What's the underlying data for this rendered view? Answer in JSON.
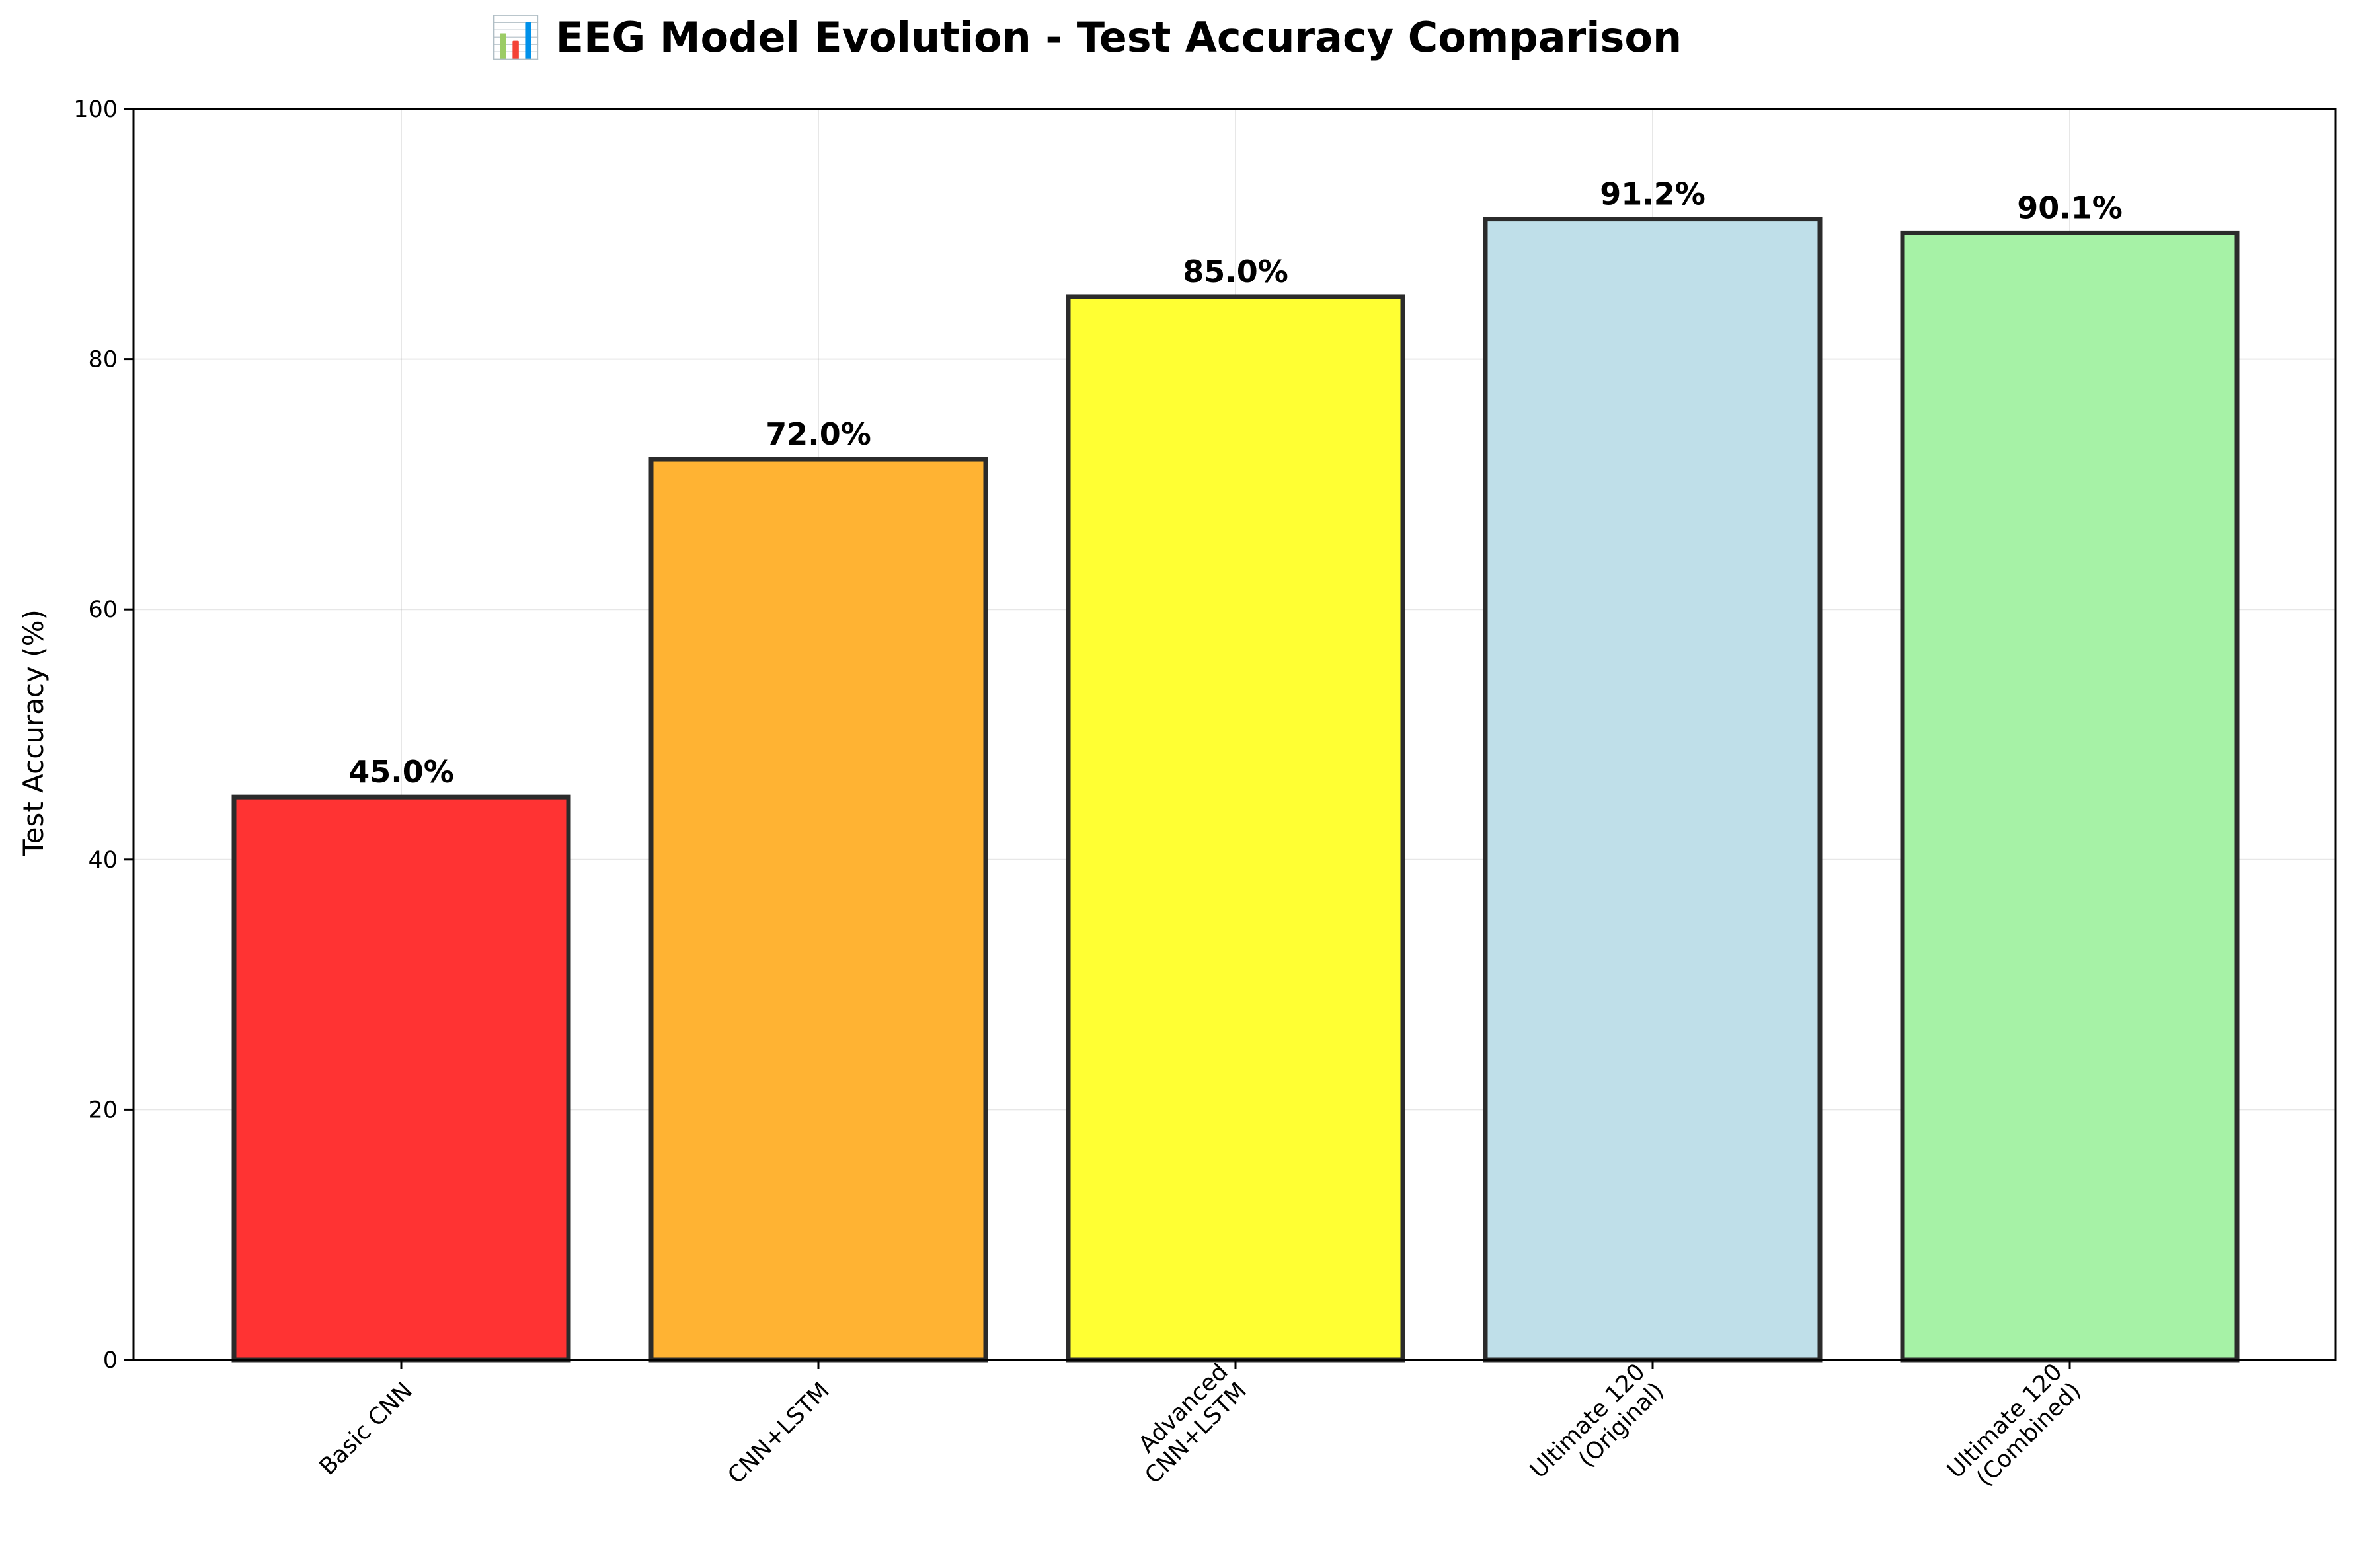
{
  "chart_data": {
    "type": "bar",
    "title": "📊 EEG Model Evolution - Test Accuracy Comparison",
    "xlabel": "",
    "ylabel": "Test Accuracy (%)",
    "ylim": [
      0,
      100
    ],
    "yticks": [
      0,
      20,
      40,
      60,
      80,
      100
    ],
    "grid": true,
    "categories": [
      [
        "Basic CNN"
      ],
      [
        "CNN+LSTM"
      ],
      [
        "Advanced",
        "CNN+LSTM"
      ],
      [
        "Ultimate 120",
        "(Original)"
      ],
      [
        "Ultimate 120",
        "(Combined)"
      ]
    ],
    "values": [
      45.0,
      72.0,
      85.0,
      91.2,
      90.1
    ],
    "value_labels": [
      "45.0%",
      "72.0%",
      "85.0%",
      "91.2%",
      "90.1%"
    ],
    "colors": [
      "#ff3333",
      "#ffb333",
      "#ffff33",
      "#bfdfe9",
      "#a6f2a6"
    ],
    "edge_color": "#2b2b2b"
  }
}
